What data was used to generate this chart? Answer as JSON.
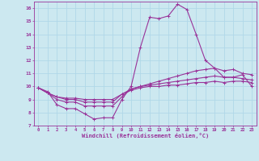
{
  "xlabel": "Windchill (Refroidissement éolien,°C)",
  "xlim": [
    -0.5,
    23.5
  ],
  "ylim": [
    7,
    16.5
  ],
  "yticks": [
    7,
    8,
    9,
    10,
    11,
    12,
    13,
    14,
    15,
    16
  ],
  "xticks": [
    0,
    1,
    2,
    3,
    4,
    5,
    6,
    7,
    8,
    9,
    10,
    11,
    12,
    13,
    14,
    15,
    16,
    17,
    18,
    19,
    20,
    21,
    22,
    23
  ],
  "background_color": "#cce8f0",
  "grid_color": "#b0d8e8",
  "line_color": "#993399",
  "line1": [
    9.9,
    9.6,
    8.6,
    8.3,
    8.3,
    7.9,
    7.5,
    7.6,
    7.6,
    9.0,
    10.0,
    13.0,
    15.3,
    15.2,
    15.4,
    16.3,
    15.9,
    14.0,
    12.0,
    11.4,
    10.7,
    10.7,
    10.9,
    10.0
  ],
  "line2": [
    9.9,
    9.5,
    9.0,
    8.8,
    8.8,
    8.5,
    8.5,
    8.5,
    8.5,
    9.2,
    9.8,
    10.0,
    10.2,
    10.4,
    10.6,
    10.8,
    11.0,
    11.2,
    11.3,
    11.4,
    11.2,
    11.3,
    11.0,
    10.9
  ],
  "line3": [
    9.9,
    9.5,
    9.2,
    9.0,
    9.0,
    8.8,
    8.8,
    8.8,
    8.8,
    9.4,
    9.8,
    10.0,
    10.1,
    10.2,
    10.3,
    10.4,
    10.5,
    10.6,
    10.7,
    10.8,
    10.7,
    10.7,
    10.6,
    10.5
  ],
  "line4": [
    9.9,
    9.5,
    9.2,
    9.1,
    9.1,
    9.0,
    9.0,
    9.0,
    9.0,
    9.4,
    9.7,
    9.9,
    10.0,
    10.0,
    10.1,
    10.1,
    10.2,
    10.3,
    10.3,
    10.4,
    10.3,
    10.4,
    10.4,
    10.3
  ]
}
